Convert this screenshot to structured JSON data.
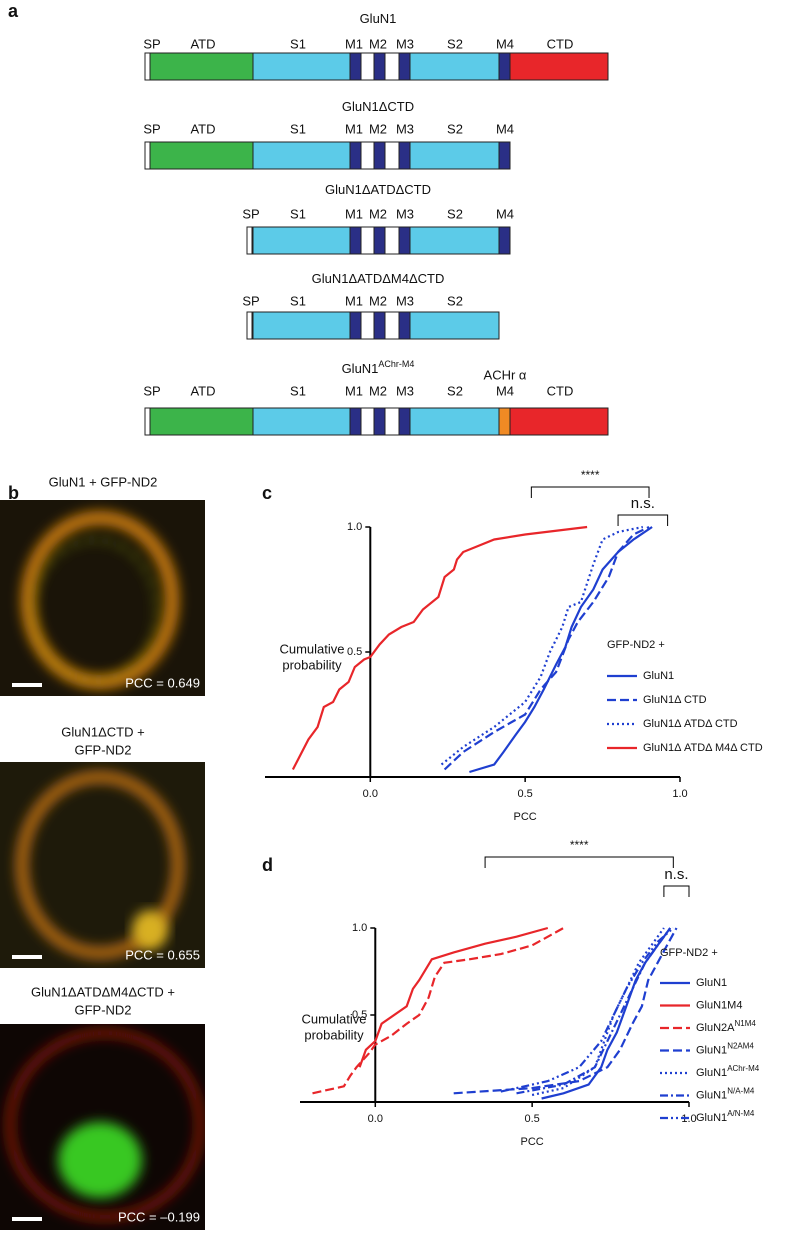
{
  "panel_labels": [
    "a",
    "b",
    "c",
    "d"
  ],
  "constructs": [
    {
      "title": "GluN1",
      "labels": [
        "SP",
        "ATD",
        "S1",
        "M1",
        "M2",
        "M3",
        "S2",
        "M4",
        "CTD"
      ]
    },
    {
      "title": "GluN1ΔCTD",
      "labels": [
        "SP",
        "ATD",
        "S1",
        "M1",
        "M2",
        "M3",
        "S2",
        "M4"
      ]
    },
    {
      "title": "GluN1ΔATDΔCTD",
      "labels": [
        "SP",
        "S1",
        "M1",
        "M2",
        "M3",
        "S2",
        "M4"
      ]
    },
    {
      "title": "GluN1ΔATDΔM4ΔCTD",
      "labels": [
        "SP",
        "S1",
        "M1",
        "M2",
        "M3",
        "S2"
      ]
    },
    {
      "title": "GluN1",
      "title_sup": "AChr-M4",
      "labels": [
        "SP",
        "ATD",
        "S1",
        "M1",
        "M2",
        "M3",
        "S2",
        "ACHr α",
        "M4",
        "CTD"
      ]
    }
  ],
  "images": [
    {
      "title_lines": [
        "GluN1 + GFP-ND2"
      ],
      "pcc": "PCC = 0.649"
    },
    {
      "title_lines": [
        "GluN1ΔCTD +",
        "GFP-ND2"
      ],
      "pcc": "PCC = 0.655"
    },
    {
      "title_lines": [
        "GluN1ΔATDΔM4ΔCTD +",
        "GFP-ND2"
      ],
      "pcc": "PCC = –0.199"
    }
  ],
  "chart_data": [
    {
      "type": "line",
      "xlabel": "PCC",
      "ylabel_lines": [
        "Cumulative",
        "probability"
      ],
      "xlim": [
        -0.34,
        1.0
      ],
      "ylim": [
        0,
        1.0
      ],
      "xticks": [
        {
          "value": 0,
          "label": "0.0"
        },
        0.5,
        {
          "value": 1,
          "label": "1.0"
        }
      ],
      "yticks": [
        0.5,
        {
          "value": 1,
          "label": "1.0"
        }
      ],
      "legend_title": "GFP-ND2 +",
      "annotations": [
        "****",
        "n.s."
      ],
      "series": [
        {
          "name": "GluN1",
          "color": "#1f3fd0",
          "dash": "solid",
          "x": [
            0.32,
            0.4,
            0.43,
            0.47,
            0.5,
            0.53,
            0.56,
            0.6,
            0.63,
            0.65,
            0.68,
            0.72,
            0.75,
            0.8,
            0.85,
            0.91
          ],
          "values": [
            0.02,
            0.05,
            0.1,
            0.17,
            0.22,
            0.28,
            0.35,
            0.45,
            0.52,
            0.6,
            0.68,
            0.75,
            0.83,
            0.9,
            0.95,
            1.0
          ]
        },
        {
          "name": "GluN1Δ CTD",
          "color": "#1f3fd0",
          "dash": "dashed",
          "x": [
            0.24,
            0.3,
            0.4,
            0.5,
            0.55,
            0.6,
            0.64,
            0.67,
            0.72,
            0.77,
            0.8,
            0.85,
            0.9
          ],
          "values": [
            0.03,
            0.1,
            0.18,
            0.25,
            0.35,
            0.42,
            0.55,
            0.62,
            0.7,
            0.8,
            0.9,
            0.97,
            1.0
          ]
        },
        {
          "name": "GluN1Δ ATDΔ CTD",
          "color": "#1f3fd0",
          "dash": "dotted",
          "x": [
            0.23,
            0.3,
            0.4,
            0.5,
            0.55,
            0.58,
            0.62,
            0.64,
            0.68,
            0.72,
            0.75,
            0.8,
            0.88
          ],
          "values": [
            0.05,
            0.12,
            0.2,
            0.3,
            0.4,
            0.5,
            0.6,
            0.68,
            0.7,
            0.85,
            0.95,
            0.98,
            1.0
          ]
        },
        {
          "name": "GluN1Δ ATDΔ M4Δ CTD",
          "color": "#e8262a",
          "dash": "solid",
          "x": [
            -0.25,
            -0.2,
            -0.17,
            -0.15,
            -0.12,
            -0.1,
            -0.07,
            -0.05,
            -0.02,
            0.0,
            0.03,
            0.06,
            0.1,
            0.14,
            0.17,
            0.22,
            0.24,
            0.27,
            0.28,
            0.3,
            0.34,
            0.4,
            0.5,
            0.7
          ],
          "values": [
            0.03,
            0.15,
            0.2,
            0.28,
            0.3,
            0.35,
            0.38,
            0.44,
            0.47,
            0.48,
            0.53,
            0.57,
            0.6,
            0.62,
            0.67,
            0.72,
            0.8,
            0.83,
            0.87,
            0.9,
            0.92,
            0.95,
            0.97,
            1.0
          ]
        }
      ]
    },
    {
      "type": "line",
      "xlabel": "PCC",
      "ylabel_lines": [
        "Cumulative",
        "probability"
      ],
      "xlim": [
        -0.24,
        1.0
      ],
      "ylim": [
        0,
        1.0
      ],
      "xticks": [
        {
          "value": 0,
          "label": "0.0"
        },
        0.5,
        {
          "value": 1,
          "label": "1.0"
        }
      ],
      "yticks": [
        0.5,
        {
          "value": 1,
          "label": "1.0"
        }
      ],
      "legend_title": "GFP-ND2 +",
      "annotations": [
        "****",
        "n.s."
      ],
      "series": [
        {
          "name": "GluN1",
          "color": "#1f3fd0",
          "dash": "solid",
          "x": [
            0.53,
            0.6,
            0.68,
            0.72,
            0.74,
            0.77,
            0.8,
            0.83,
            0.86,
            0.9,
            0.94
          ],
          "values": [
            0.02,
            0.05,
            0.1,
            0.2,
            0.3,
            0.4,
            0.55,
            0.7,
            0.8,
            0.9,
            1.0
          ]
        },
        {
          "name": "GluN1M4",
          "color": "#e8262a",
          "dash": "solid",
          "x": [
            -0.05,
            -0.03,
            0.0,
            0.02,
            0.1,
            0.12,
            0.14,
            0.18,
            0.25,
            0.35,
            0.45,
            0.55
          ],
          "values": [
            0.2,
            0.3,
            0.35,
            0.45,
            0.55,
            0.65,
            0.7,
            0.82,
            0.86,
            0.91,
            0.95,
            1.0
          ]
        },
        {
          "name": "GluN2A",
          "name_sup": "N1M4",
          "color": "#e8262a",
          "dash": "dashed",
          "x": [
            -0.2,
            -0.1,
            -0.08,
            -0.06,
            -0.02,
            0.0,
            0.05,
            0.1,
            0.14,
            0.17,
            0.19,
            0.22,
            0.3,
            0.4,
            0.5,
            0.6
          ],
          "values": [
            0.05,
            0.09,
            0.15,
            0.2,
            0.28,
            0.33,
            0.38,
            0.45,
            0.5,
            0.6,
            0.72,
            0.8,
            0.82,
            0.85,
            0.9,
            1.0
          ]
        },
        {
          "name": "GluN1",
          "name_sup": "N2AM4",
          "color": "#1f3fd0",
          "dash": "dashed",
          "x": [
            0.25,
            0.5,
            0.65,
            0.74,
            0.78,
            0.82,
            0.85,
            0.87,
            0.9,
            0.93,
            0.96
          ],
          "values": [
            0.05,
            0.08,
            0.12,
            0.2,
            0.3,
            0.45,
            0.55,
            0.7,
            0.8,
            0.9,
            1.0
          ]
        },
        {
          "name": "GluN1",
          "name_sup": "AChr-M4",
          "color": "#1f3fd0",
          "dash": "dotted",
          "x": [
            0.5,
            0.6,
            0.7,
            0.73,
            0.76,
            0.8,
            0.84,
            0.88,
            0.92
          ],
          "values": [
            0.04,
            0.08,
            0.2,
            0.35,
            0.5,
            0.65,
            0.8,
            0.9,
            1.0
          ]
        },
        {
          "name": "GluN1",
          "name_sup": "N/A-M4",
          "color": "#1f3fd0",
          "dash": "dashdot",
          "x": [
            0.45,
            0.6,
            0.7,
            0.74,
            0.78,
            0.82,
            0.86,
            0.9,
            0.94
          ],
          "values": [
            0.05,
            0.1,
            0.2,
            0.35,
            0.5,
            0.65,
            0.8,
            0.9,
            1.0
          ]
        },
        {
          "name": "GluN1",
          "name_sup": "A/N-M4",
          "color": "#1f3fd0",
          "dash": "dashdotdot",
          "x": [
            0.4,
            0.55,
            0.65,
            0.72,
            0.76,
            0.8,
            0.85,
            0.9,
            0.95
          ],
          "values": [
            0.06,
            0.12,
            0.2,
            0.35,
            0.5,
            0.65,
            0.8,
            0.92,
            1.0
          ]
        }
      ]
    }
  ]
}
